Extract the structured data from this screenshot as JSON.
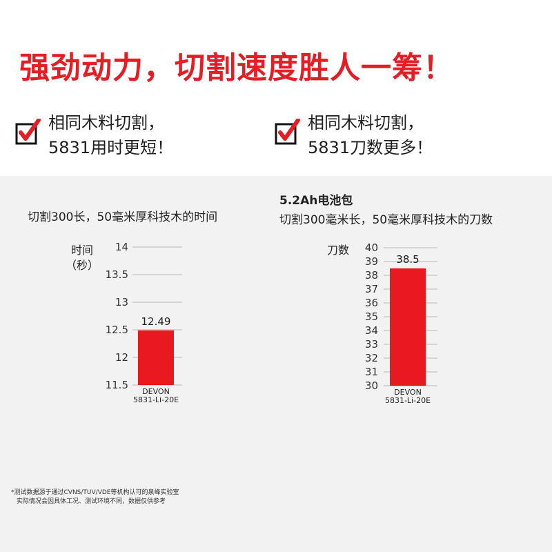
{
  "headline": "强劲动力，切割速度胜人一筹！",
  "features": {
    "left": {
      "line1": "相同木料切割，",
      "line2": "5831用时更短！"
    },
    "right": {
      "line1": "相同木料切割，",
      "line2": "5831刀数更多！"
    }
  },
  "icons": {
    "checkbox": "red-check-box-icon"
  },
  "colors": {
    "brand_red": "#e41e25",
    "bar_red": "#e8191f",
    "panel_gray": "#f2f2f2"
  },
  "chart_data": [
    {
      "type": "bar",
      "title": "切割300长，50毫米厚科技木的时间",
      "ylabel_line1": "时间",
      "ylabel_line2": "（秒）",
      "categories": [
        "DEVON\n5831-Li-20E"
      ],
      "values": [
        12.49
      ],
      "value_labels": [
        "12.49"
      ],
      "ylim": [
        11.5,
        14
      ],
      "yticks": [
        11.5,
        12,
        12.5,
        13,
        13.5,
        14
      ],
      "ytick_labels": [
        "11.5",
        "12",
        "12.5",
        "13",
        "13.5",
        "14"
      ],
      "grid": true
    },
    {
      "type": "bar",
      "supertitle": "5.2Ah电池包",
      "title": "切割300毫米长，50毫米厚科技木的刀数",
      "ylabel_line1": "刀数",
      "ylabel_line2": "",
      "categories": [
        "DEVON\n5831-Li-20E"
      ],
      "values": [
        38.5
      ],
      "value_labels": [
        "38.5"
      ],
      "ylim": [
        30,
        40
      ],
      "yticks": [
        30,
        31,
        32,
        33,
        34,
        35,
        36,
        37,
        38,
        39,
        40
      ],
      "ytick_labels": [
        "30",
        "31",
        "32",
        "33",
        "34",
        "35",
        "36",
        "37",
        "38",
        "39",
        "40"
      ],
      "grid": true
    }
  ],
  "footnote": {
    "line1": "*测试数据源于通过CVNS/TUV/VDE等机构认可的泉峰实验室",
    "line2": "实际情况会因具体工况、测试环境不同，数据仅供参考"
  }
}
